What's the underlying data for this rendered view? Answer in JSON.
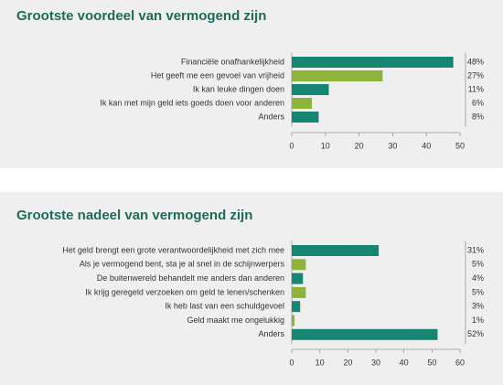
{
  "chart_data": [
    {
      "type": "barh",
      "title": "Grootste voordeel van vermogend zijn",
      "categories": [
        "Financiële onafhankelijkheid",
        "Het geeft me een gevoel van vrijheid",
        "Ik kan leuke dingen doen",
        "Ik kan met mijn geld iets goeds doen voor anderen",
        "Anders"
      ],
      "values": [
        48,
        27,
        11,
        6,
        8
      ],
      "value_labels": [
        "48%",
        "27%",
        "11%",
        "6%",
        "8%"
      ],
      "colors": [
        "#168571",
        "#8fb43c",
        "#168571",
        "#8fb43c",
        "#168571"
      ],
      "xlim": [
        0,
        50
      ],
      "xticks": [
        0,
        10,
        20,
        30,
        40,
        50
      ]
    },
    {
      "type": "barh",
      "title": "Grootste nadeel van vermogend zijn",
      "categories": [
        "Het geld brengt een grote verantwoordelijkheid met zich mee",
        "Als je vermogend bent, sta je al snel in de schijnwerpers",
        "De buitenwereld behandelt me anders dan anderen",
        "Ik krijg geregeld verzoeken om geld te lenen/schenken",
        "Ik heb last van een schuldgevoel",
        "Geld maakt me ongelukkig",
        "Anders"
      ],
      "values": [
        31,
        5,
        4,
        5,
        3,
        1,
        52
      ],
      "value_labels": [
        "31%",
        "5%",
        "4%",
        "5%",
        "3%",
        "1%",
        "52%"
      ],
      "colors": [
        "#168571",
        "#8fb43c",
        "#168571",
        "#8fb43c",
        "#168571",
        "#8fb43c",
        "#168571"
      ],
      "xlim": [
        0,
        60
      ],
      "xticks": [
        0,
        10,
        20,
        30,
        40,
        50,
        60
      ]
    }
  ]
}
